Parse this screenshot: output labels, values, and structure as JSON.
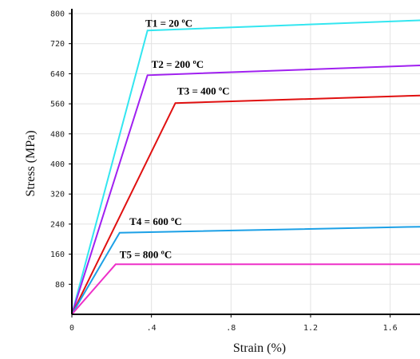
{
  "chart_data": {
    "type": "line",
    "xlabel": "Strain (%)",
    "ylabel": "Stress (MPa)",
    "xlim": [
      0,
      1.75
    ],
    "ylim": [
      0,
      800
    ],
    "xticks": [
      {
        "value": 0,
        "label": "0"
      },
      {
        "value": 0.4,
        "label": ".4"
      },
      {
        "value": 0.8,
        "label": ".8"
      },
      {
        "value": 1.2,
        "label": "1.2"
      },
      {
        "value": 1.6,
        "label": "1.6"
      }
    ],
    "yticks": [
      {
        "value": 80,
        "label": "80"
      },
      {
        "value": 160,
        "label": "160"
      },
      {
        "value": 240,
        "label": "240"
      },
      {
        "value": 320,
        "label": "320"
      },
      {
        "value": 400,
        "label": "400"
      },
      {
        "value": 480,
        "label": "480"
      },
      {
        "value": 560,
        "label": "560"
      },
      {
        "value": 640,
        "label": "640"
      },
      {
        "value": 720,
        "label": "720"
      },
      {
        "value": 800,
        "label": "800"
      }
    ],
    "grid": true,
    "series": [
      {
        "name": "T1 = 20 ºC",
        "color": "#33e6f0",
        "x": [
          0,
          0.38,
          1.75
        ],
        "y": [
          0,
          755,
          782
        ],
        "label_at": [
          0.37,
          765
        ]
      },
      {
        "name": "T2 = 200 ºC",
        "color": "#a020f0",
        "x": [
          0,
          0.38,
          1.75
        ],
        "y": [
          0,
          636,
          662
        ],
        "label_at": [
          0.4,
          656
        ]
      },
      {
        "name": "T3 = 400 ºC",
        "color": "#e01010",
        "x": [
          0,
          0.52,
          1.75
        ],
        "y": [
          0,
          562,
          582
        ],
        "label_at": [
          0.53,
          585
        ]
      },
      {
        "name": "T4 = 600 ºC",
        "color": "#1ca0e6",
        "x": [
          0,
          0.24,
          1.75
        ],
        "y": [
          0,
          217,
          233
        ],
        "label_at": [
          0.29,
          238
        ]
      },
      {
        "name": "T5 = 800 ºC",
        "color": "#ee30c8",
        "x": [
          0,
          0.22,
          1.75
        ],
        "y": [
          0,
          133,
          133
        ],
        "label_at": [
          0.24,
          150
        ]
      }
    ]
  }
}
